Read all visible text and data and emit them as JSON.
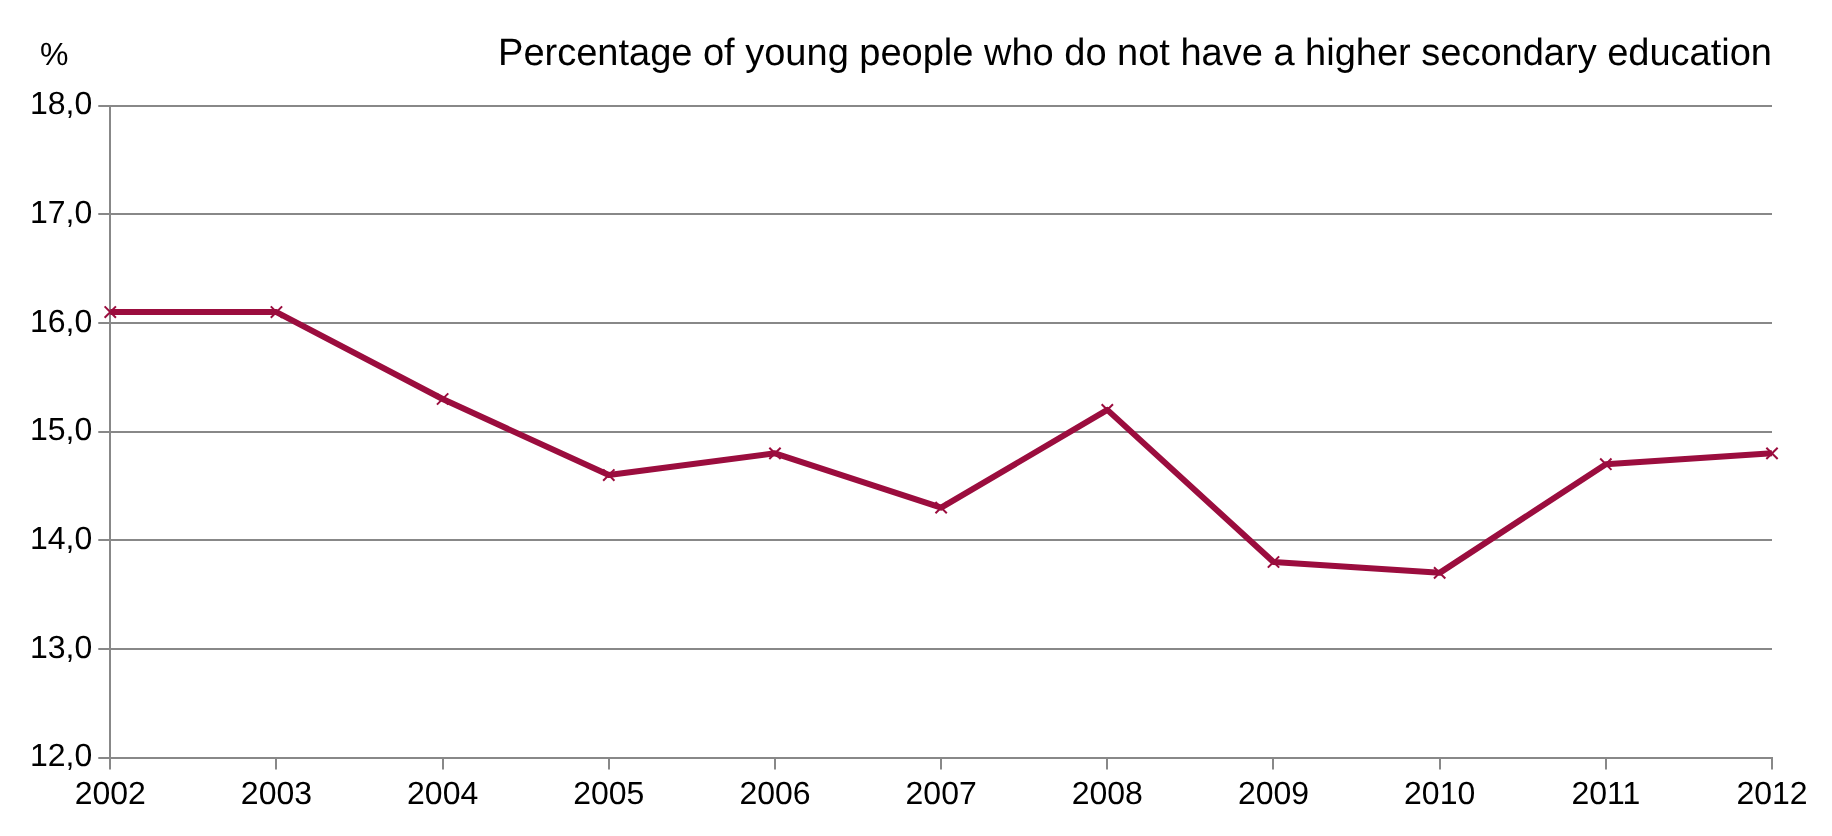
{
  "chart_data": {
    "type": "line",
    "title": "Percentage of young people who do not have a higher secondary education",
    "ylabel": "%",
    "x": [
      2002,
      2003,
      2004,
      2005,
      2006,
      2007,
      2008,
      2009,
      2010,
      2011,
      2012
    ],
    "series": [
      {
        "color": "#9b0d3e",
        "values": [
          16.1,
          16.1,
          15.3,
          14.6,
          14.8,
          14.3,
          15.2,
          13.8,
          13.7,
          14.7,
          14.8
        ]
      }
    ],
    "xlim": [
      2002,
      2012
    ],
    "xticks": [
      2002,
      2003,
      2004,
      2005,
      2006,
      2007,
      2008,
      2009,
      2010,
      2011,
      2012
    ],
    "ylim": [
      12,
      18
    ],
    "yticks": [
      {
        "value": 12,
        "label": "12,0"
      },
      {
        "value": 13,
        "label": "13,0"
      },
      {
        "value": 14,
        "label": "14,0"
      },
      {
        "value": 15,
        "label": "15,0"
      },
      {
        "value": 16,
        "label": "16,0"
      },
      {
        "value": 17,
        "label": "17,0"
      },
      {
        "value": 18,
        "label": "18,0"
      }
    ],
    "grid": "y",
    "legend": false,
    "marker": "cross",
    "line_style": "solid"
  }
}
